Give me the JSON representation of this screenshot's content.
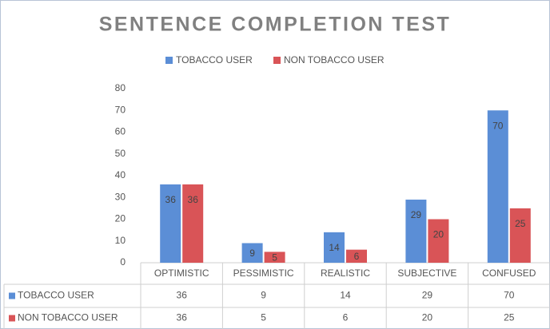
{
  "chart_data": {
    "type": "bar",
    "title": "SENTENCE COMPLETION TEST",
    "categories": [
      "OPTIMISTIC",
      "PESSIMISTIC",
      "REALISTIC",
      "SUBJECTIVE",
      "CONFUSED"
    ],
    "series": [
      {
        "name": "TOBACCO USER",
        "color": "#5b8ed6",
        "values": [
          36,
          9,
          14,
          29,
          70
        ]
      },
      {
        "name": "NON TOBACCO USER",
        "color": "#d95457",
        "values": [
          36,
          5,
          6,
          20,
          25
        ]
      }
    ],
    "ylim": [
      0,
      80
    ],
    "yticks": [
      0,
      10,
      20,
      30,
      40,
      50,
      60,
      70,
      80
    ],
    "legend": "top",
    "data_table": true
  }
}
